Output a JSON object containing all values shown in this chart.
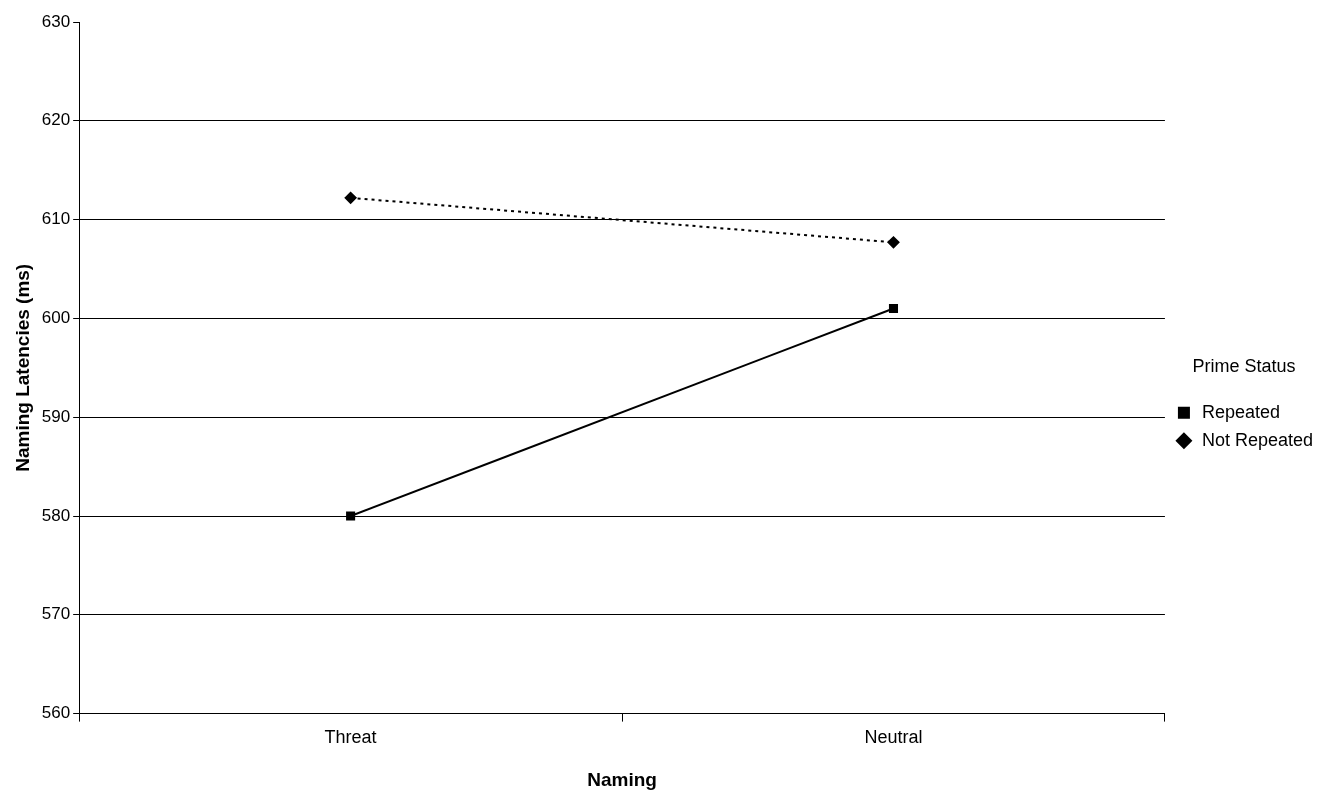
{
  "chart_data": {
    "type": "line",
    "xlabel": "Naming",
    "ylabel": "Naming Latencies (ms)",
    "legend_title": "Prime Status",
    "categories": [
      "Threat",
      "Neutral"
    ],
    "series": [
      {
        "name": "Repeated",
        "color": "#000000",
        "values": [
          580,
          601
        ],
        "marker": "square",
        "line_style": "solid"
      },
      {
        "name": "Not Repeated",
        "color": "#000000",
        "values": [
          612.2,
          607.7
        ],
        "marker": "diamond",
        "line_style": "dotted"
      }
    ],
    "ylim": [
      560,
      630
    ],
    "yticks": [
      560,
      570,
      580,
      590,
      600,
      610,
      620,
      630
    ],
    "grid": "y",
    "legend": "right"
  }
}
